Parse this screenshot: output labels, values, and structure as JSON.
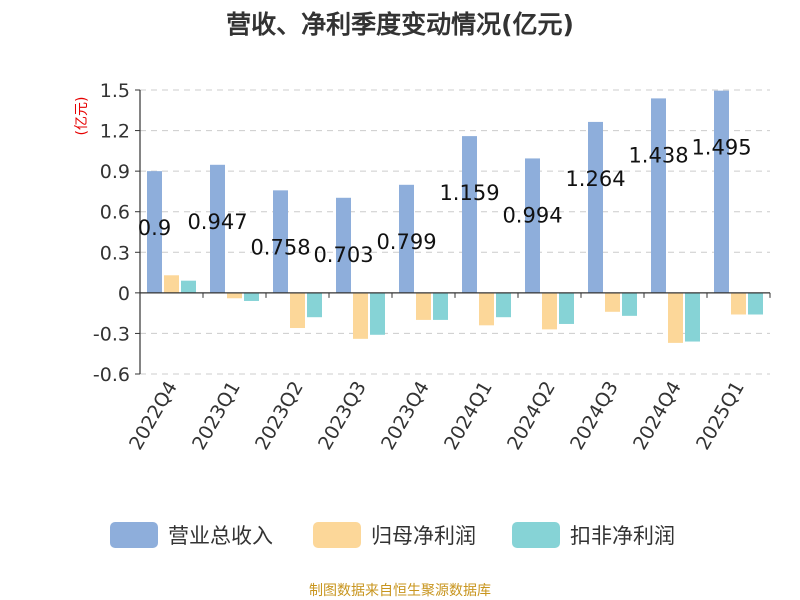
{
  "chart_data": {
    "type": "bar",
    "title": "营收、净利季度变动情况(亿元)",
    "unit_label": "(亿元)",
    "categories": [
      "2022Q4",
      "2023Q1",
      "2023Q2",
      "2023Q3",
      "2023Q4",
      "2024Q1",
      "2024Q2",
      "2024Q3",
      "2024Q4",
      "2025Q1"
    ],
    "series": [
      {
        "name": "营业总收入",
        "color": "#8eaedb",
        "values": [
          0.9,
          0.947,
          0.758,
          0.703,
          0.799,
          1.159,
          0.994,
          1.264,
          1.438,
          1.495
        ]
      },
      {
        "name": "归母净利润",
        "color": "#fcd799",
        "values": [
          0.13,
          -0.04,
          -0.26,
          -0.34,
          -0.2,
          -0.24,
          -0.27,
          -0.14,
          -0.37,
          -0.16
        ]
      },
      {
        "name": "扣非净利润",
        "color": "#86d3d6",
        "values": [
          0.09,
          -0.06,
          -0.18,
          -0.31,
          -0.2,
          -0.18,
          -0.23,
          -0.17,
          -0.36,
          -0.16
        ]
      }
    ],
    "data_labels": [
      "0.9",
      "0.947",
      "0.758",
      "0.703",
      "0.799",
      "1.159",
      "0.994",
      "1.264",
      "1.438",
      "1.495"
    ],
    "yticks": [
      1.5,
      1.2,
      0.9,
      0.6,
      0.3,
      0,
      -0.3,
      -0.6
    ],
    "ylim": [
      -0.6,
      1.5
    ],
    "grid": true,
    "legend_position": "bottom"
  },
  "source": "制图数据来自恒生聚源数据库"
}
